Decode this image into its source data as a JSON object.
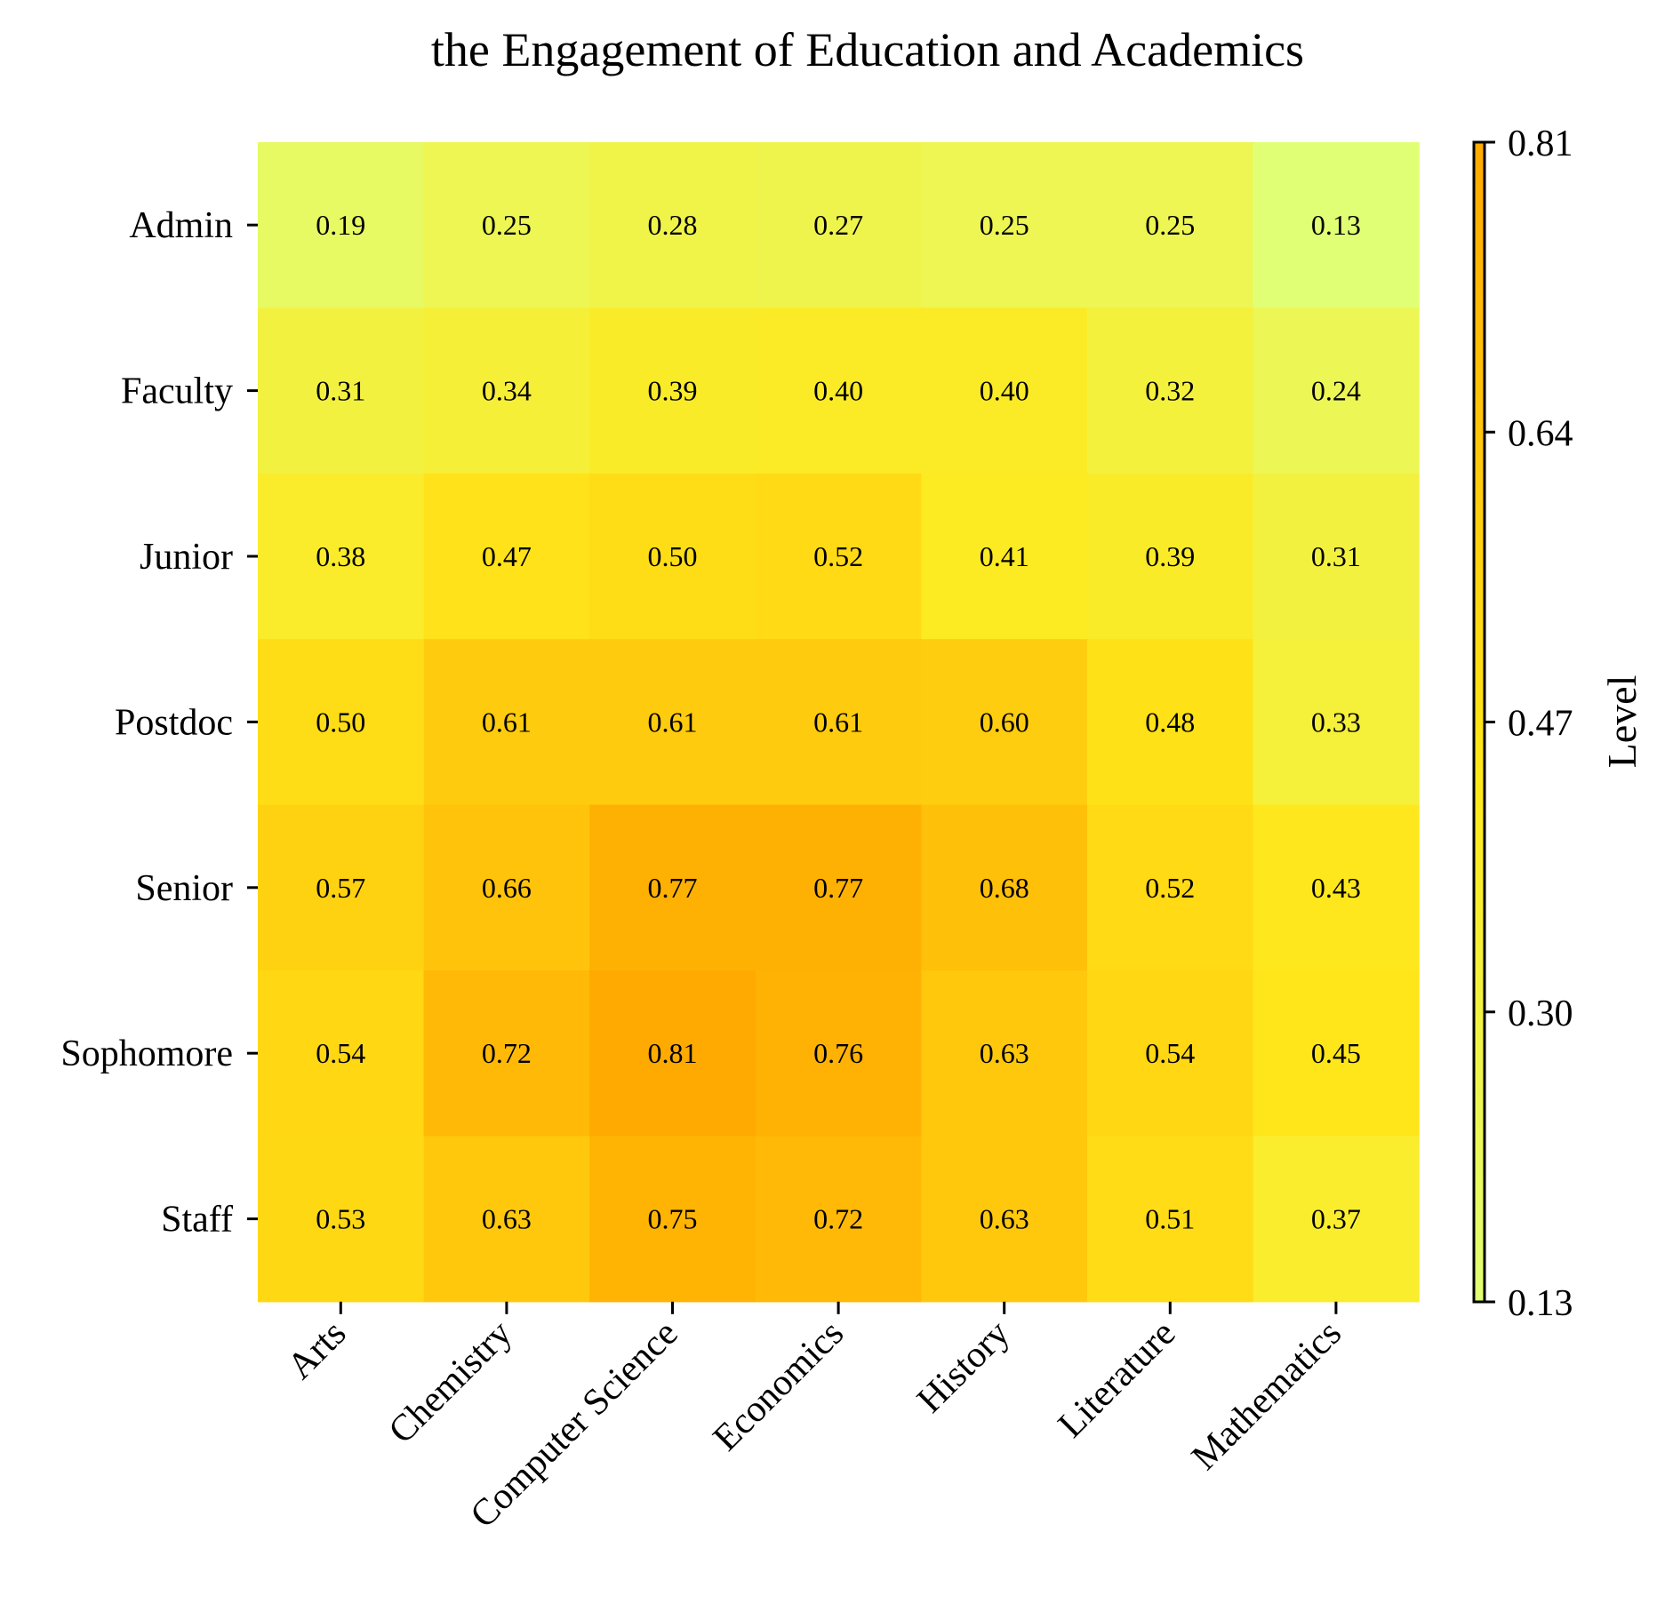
{
  "chart_data": {
    "type": "heatmap",
    "title": "the Engagement of Education and Academics",
    "rows": [
      "Admin",
      "Faculty",
      "Junior",
      "Postdoc",
      "Senior",
      "Sophomore",
      "Staff"
    ],
    "columns": [
      "Arts",
      "Chemistry",
      "Computer Science",
      "Economics",
      "History",
      "Literature",
      "Mathematics"
    ],
    "values": [
      [
        0.19,
        0.25,
        0.28,
        0.27,
        0.25,
        0.25,
        0.13
      ],
      [
        0.31,
        0.34,
        0.39,
        0.4,
        0.4,
        0.32,
        0.24
      ],
      [
        0.38,
        0.47,
        0.5,
        0.52,
        0.41,
        0.39,
        0.31
      ],
      [
        0.5,
        0.61,
        0.61,
        0.61,
        0.6,
        0.48,
        0.33
      ],
      [
        0.57,
        0.66,
        0.77,
        0.77,
        0.68,
        0.52,
        0.43
      ],
      [
        0.54,
        0.72,
        0.81,
        0.76,
        0.63,
        0.54,
        0.45
      ],
      [
        0.53,
        0.63,
        0.75,
        0.72,
        0.63,
        0.51,
        0.37
      ]
    ],
    "value_labels": [
      [
        "0.19",
        "0.25",
        "0.28",
        "0.27",
        "0.25",
        "0.25",
        "0.13"
      ],
      [
        "0.31",
        "0.34",
        "0.39",
        "0.40",
        "0.40",
        "0.32",
        "0.24"
      ],
      [
        "0.38",
        "0.47",
        "0.50",
        "0.52",
        "0.41",
        "0.39",
        "0.31"
      ],
      [
        "0.50",
        "0.61",
        "0.61",
        "0.61",
        "0.60",
        "0.48",
        "0.33"
      ],
      [
        "0.57",
        "0.66",
        "0.77",
        "0.77",
        "0.68",
        "0.52",
        "0.43"
      ],
      [
        "0.54",
        "0.72",
        "0.81",
        "0.76",
        "0.63",
        "0.54",
        "0.45"
      ],
      [
        "0.53",
        "0.63",
        "0.75",
        "0.72",
        "0.63",
        "0.51",
        "0.37"
      ]
    ],
    "colorbar": {
      "label": "Level",
      "range": [
        0.13,
        0.81
      ],
      "ticks": [
        "0.13",
        "0.30",
        "0.47",
        "0.64",
        "0.81"
      ],
      "colors": [
        "#e1ff75",
        "#ffe81b",
        "#ffaa00"
      ]
    }
  }
}
